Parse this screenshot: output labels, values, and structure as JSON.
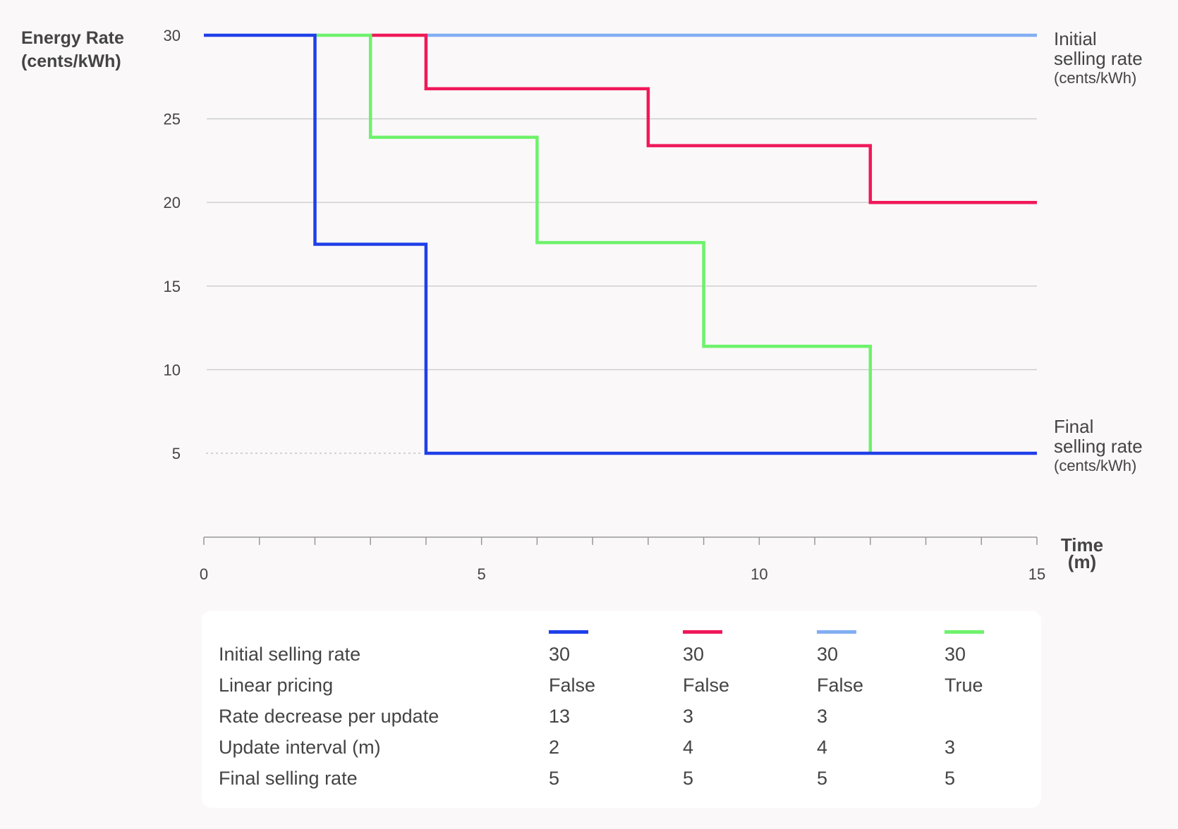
{
  "chart_data": {
    "type": "line",
    "step": true,
    "ylabel": [
      "Energy Rate",
      "(cents/kWh)"
    ],
    "xlabel": [
      "Time",
      "(m)"
    ],
    "yticks": [
      30,
      25,
      20,
      15,
      10,
      5
    ],
    "xticks": [
      0,
      5,
      10,
      15
    ],
    "xlim": [
      0,
      15
    ],
    "ylim": [
      0,
      30
    ],
    "grid": true,
    "reference_labels": {
      "initial": {
        "line1": "Initial",
        "line2": "selling rate",
        "unit": "(cents/kWh)",
        "value": 30
      },
      "final": {
        "line1": "Final",
        "line2": "selling rate",
        "unit": "(cents/kWh)",
        "value": 5
      }
    },
    "series": [
      {
        "color": "#1f3fe8",
        "initial": 30,
        "final": 5,
        "points": [
          [
            0,
            30
          ],
          [
            2,
            30
          ],
          [
            2,
            17.5
          ],
          [
            4,
            17.5
          ],
          [
            4,
            5
          ],
          [
            15,
            5
          ]
        ]
      },
      {
        "color": "#f0185a",
        "initial": 30,
        "final": 20,
        "points": [
          [
            3,
            30
          ],
          [
            4,
            30
          ],
          [
            4,
            26.8
          ],
          [
            8,
            26.8
          ],
          [
            8,
            23.4
          ],
          [
            12,
            23.4
          ],
          [
            12,
            20
          ],
          [
            15,
            20
          ]
        ]
      },
      {
        "color": "#82aef2",
        "initial": 30,
        "final": 30,
        "points": [
          [
            4,
            30
          ],
          [
            15,
            30
          ]
        ]
      },
      {
        "color": "#6ef26b",
        "initial": 30,
        "final": 5,
        "points": [
          [
            2,
            30
          ],
          [
            3,
            30
          ],
          [
            3,
            23.9
          ],
          [
            6,
            23.9
          ],
          [
            6,
            17.6
          ],
          [
            9,
            17.6
          ],
          [
            9,
            11.4
          ],
          [
            12,
            11.4
          ],
          [
            12,
            5
          ]
        ]
      }
    ]
  },
  "legend_table": {
    "colors": [
      "#1f3fe8",
      "#f0185a",
      "#82aef2",
      "#6ef26b"
    ],
    "rows": [
      {
        "label": "Initial selling rate",
        "values": [
          "30",
          "30",
          "30",
          "30"
        ]
      },
      {
        "label": "Linear pricing",
        "values": [
          "False",
          "False",
          "False",
          "True"
        ]
      },
      {
        "label": "Rate decrease per update",
        "values": [
          "13",
          "3",
          "3",
          ""
        ]
      },
      {
        "label": "Update interval (m)",
        "values": [
          "2",
          "4",
          "4",
          "3"
        ]
      },
      {
        "label": "Final selling rate",
        "values": [
          "5",
          "5",
          "5",
          "5"
        ]
      }
    ]
  }
}
